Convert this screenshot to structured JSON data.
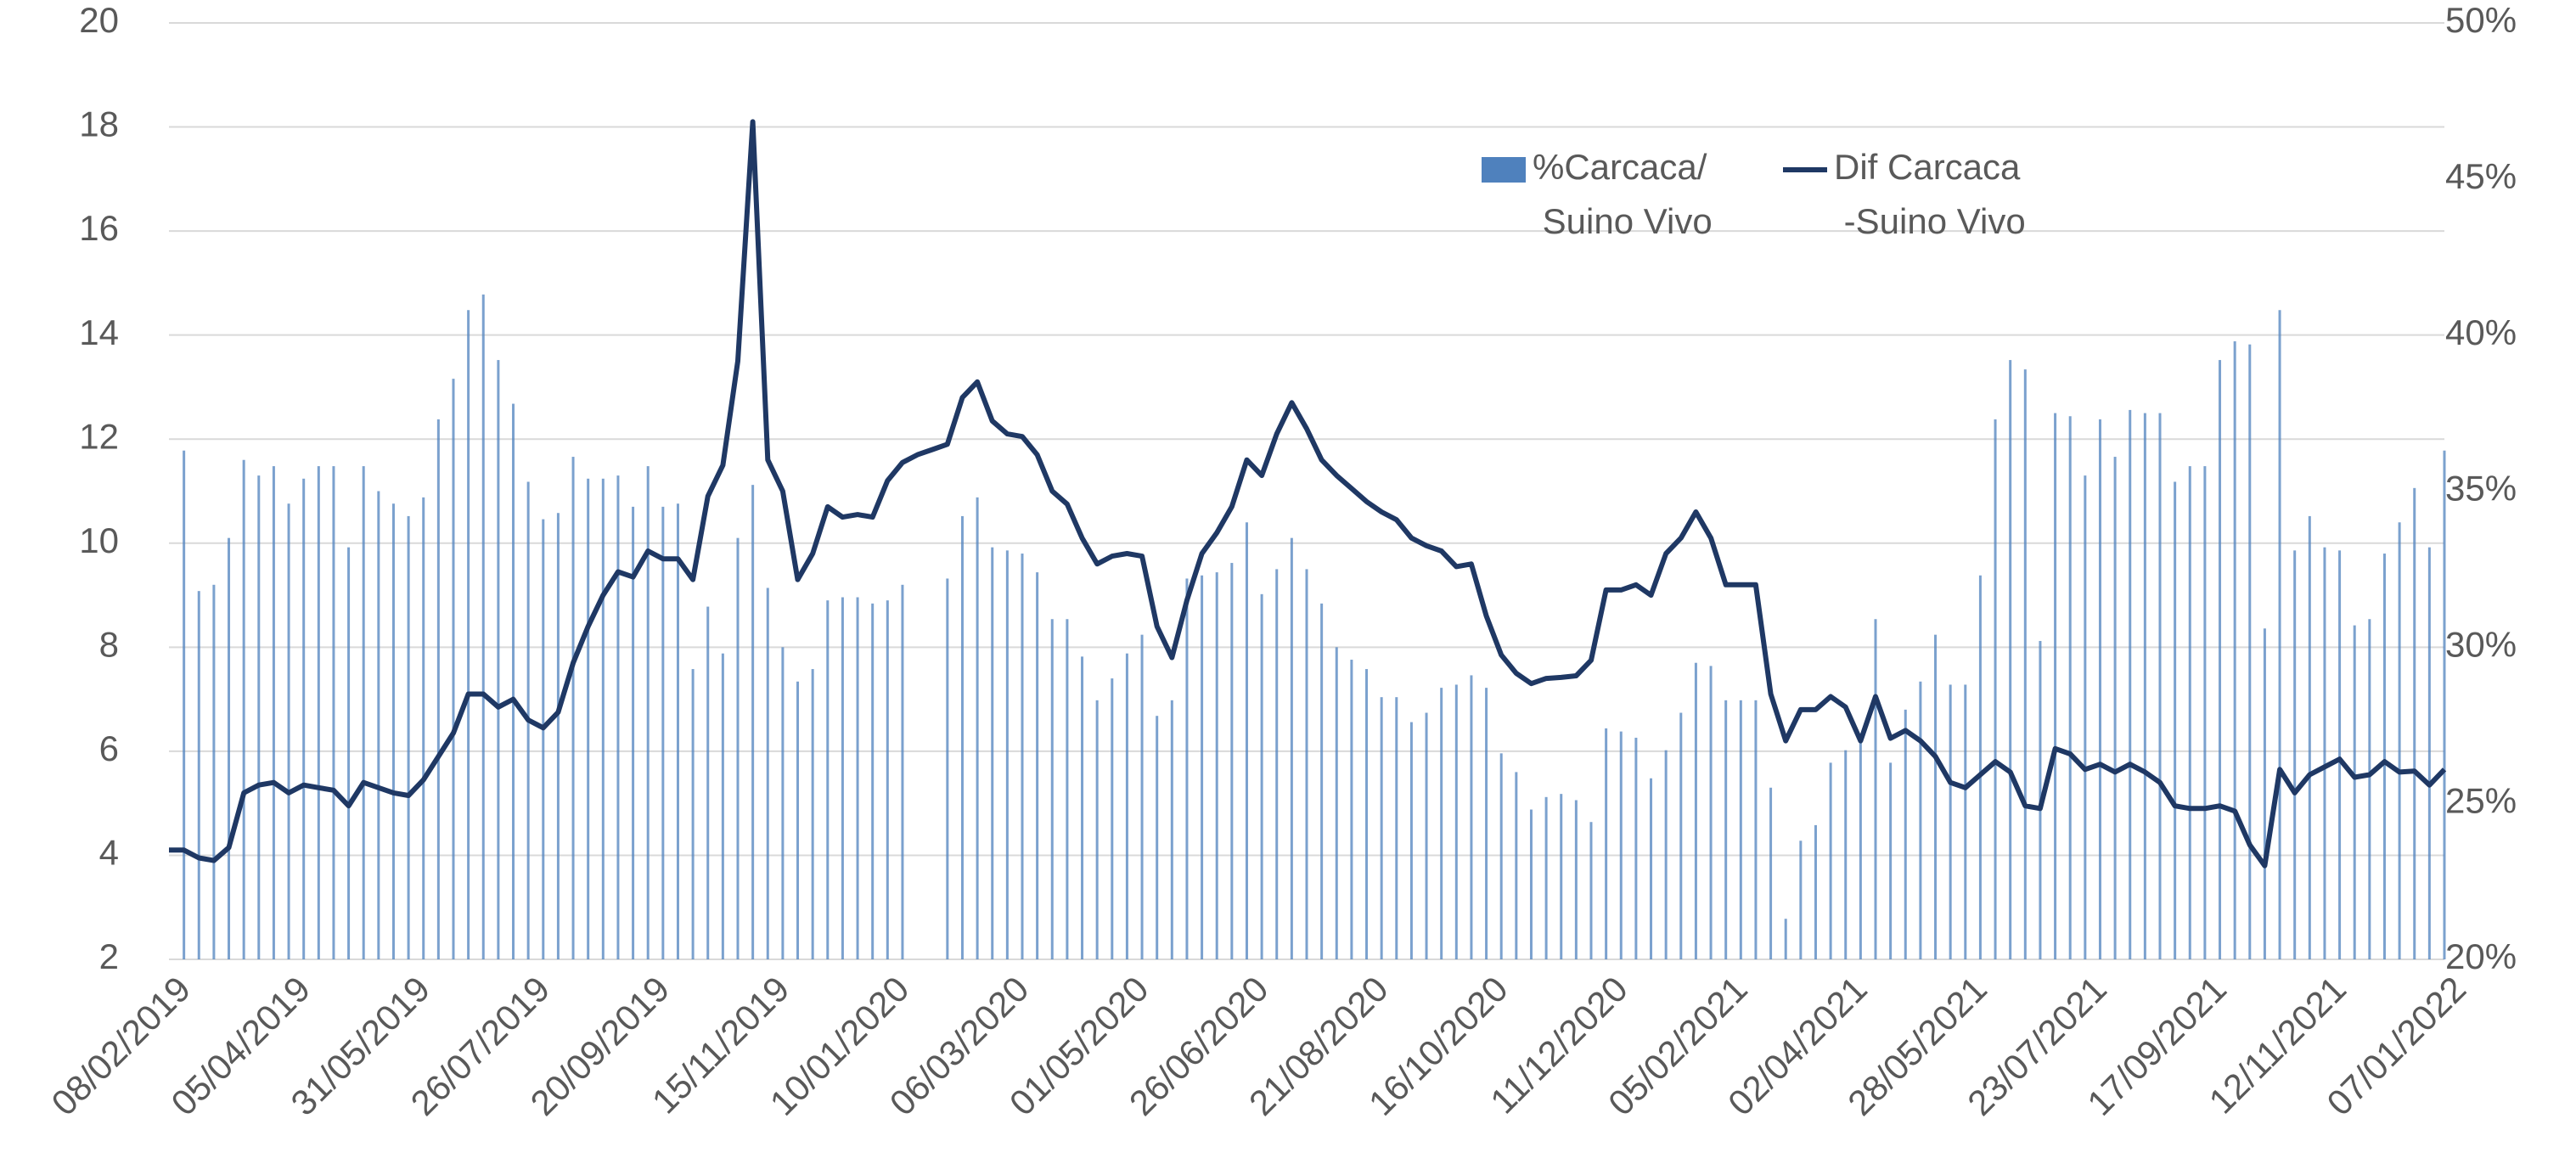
{
  "chart_data": {
    "type": "bar-line",
    "categories": [
      "08/02/2019",
      null,
      null,
      null,
      null,
      null,
      null,
      null,
      "05/04/2019",
      null,
      null,
      null,
      null,
      null,
      null,
      null,
      "31/05/2019",
      null,
      null,
      null,
      null,
      null,
      null,
      null,
      "26/07/2019",
      null,
      null,
      null,
      null,
      null,
      null,
      null,
      "20/09/2019",
      null,
      null,
      null,
      null,
      null,
      null,
      null,
      "15/11/2019",
      null,
      null,
      null,
      null,
      null,
      null,
      null,
      "10/01/2020",
      null,
      null,
      null,
      null,
      null,
      null,
      null,
      "06/03/2020",
      null,
      null,
      null,
      null,
      null,
      null,
      null,
      "01/05/2020",
      null,
      null,
      null,
      null,
      null,
      null,
      null,
      "26/06/2020",
      null,
      null,
      null,
      null,
      null,
      null,
      null,
      "21/08/2020",
      null,
      null,
      null,
      null,
      null,
      null,
      null,
      "16/10/2020",
      null,
      null,
      null,
      null,
      null,
      null,
      null,
      "11/12/2020",
      null,
      null,
      null,
      null,
      null,
      null,
      null,
      "05/02/2021",
      null,
      null,
      null,
      null,
      null,
      null,
      null,
      "02/04/2021",
      null,
      null,
      null,
      null,
      null,
      null,
      null,
      "28/05/2021",
      null,
      null,
      null,
      null,
      null,
      null,
      null,
      "23/07/2021",
      null,
      null,
      null,
      null,
      null,
      null,
      null,
      "17/09/2021",
      null,
      null,
      null,
      null,
      null,
      null,
      null,
      "12/11/2021",
      null,
      null,
      null,
      null,
      null,
      null,
      null,
      "07/01/2022"
    ],
    "series": [
      {
        "name": "%Carcaca/\nSuino Vivo",
        "type": "bar",
        "axis": "y2",
        "color": "#4f81bd",
        "values": [
          null,
          36.3,
          31.8,
          32.0,
          33.5,
          36.0,
          35.5,
          35.8,
          34.6,
          35.4,
          35.8,
          35.8,
          33.2,
          35.8,
          35.0,
          34.6,
          34.2,
          34.8,
          37.3,
          38.6,
          40.8,
          41.3,
          39.2,
          37.8,
          35.3,
          34.1,
          34.3,
          36.1,
          35.4,
          35.4,
          35.5,
          34.5,
          35.8,
          34.5,
          34.6,
          29.3,
          31.3,
          29.8,
          33.5,
          35.2,
          31.9,
          30.0,
          28.9,
          29.3,
          31.5,
          31.6,
          31.6,
          31.4,
          31.5,
          32.0,
          null,
          null,
          32.2,
          34.2,
          34.8,
          33.2,
          33.1,
          33.0,
          32.4,
          30.9,
          30.9,
          29.7,
          28.3,
          29.0,
          29.8,
          30.4,
          27.8,
          28.3,
          32.2,
          32.3,
          32.4,
          32.7,
          34.0,
          31.7,
          32.5,
          33.5,
          32.5,
          31.4,
          30.0,
          29.6,
          29.3,
          28.4,
          28.4,
          27.6,
          27.9,
          28.7,
          28.8,
          29.1,
          28.7,
          26.6,
          26.0,
          24.8,
          25.2,
          25.3,
          25.1,
          24.4,
          27.4,
          27.3,
          27.1,
          25.8,
          26.7,
          27.9,
          29.5,
          29.4,
          28.3,
          28.3,
          28.3,
          25.5,
          21.3,
          23.8,
          24.3,
          26.3,
          26.7,
          27.0,
          30.9,
          26.3,
          28.0,
          28.9,
          30.4,
          28.8,
          28.8,
          32.3,
          37.3,
          39.2,
          38.9,
          30.2,
          37.5,
          37.4,
          35.5,
          37.3,
          36.1,
          37.6,
          37.5,
          37.5,
          35.3,
          35.8,
          35.8,
          39.2,
          39.8,
          39.7,
          30.6,
          40.8,
          33.1,
          34.2,
          33.2,
          33.1,
          30.7,
          30.9,
          33.0,
          34.0,
          35.1,
          33.2,
          36.3
        ]
      },
      {
        "name": "Dif Carcaca\n-Suino Vivo",
        "type": "line",
        "axis": "y",
        "color": "#1f3864",
        "values": [
          4.1,
          4.1,
          3.95,
          3.9,
          4.15,
          5.2,
          5.35,
          5.4,
          5.2,
          5.35,
          5.3,
          5.25,
          4.95,
          5.4,
          5.3,
          5.2,
          5.15,
          5.45,
          5.9,
          6.35,
          7.1,
          7.1,
          6.85,
          7.0,
          6.6,
          6.45,
          6.75,
          7.7,
          8.4,
          9.0,
          9.45,
          9.35,
          9.85,
          9.7,
          9.7,
          9.3,
          10.9,
          11.5,
          13.5,
          18.1,
          11.6,
          11.0,
          9.3,
          9.8,
          10.7,
          10.5,
          10.55,
          10.5,
          11.2,
          11.55,
          11.7,
          11.8,
          11.9,
          12.8,
          13.1,
          12.35,
          12.1,
          12.05,
          11.7,
          11.0,
          10.75,
          10.1,
          9.6,
          9.75,
          9.8,
          9.75,
          8.4,
          7.8,
          8.9,
          9.8,
          10.2,
          10.7,
          11.6,
          11.3,
          12.1,
          12.7,
          12.2,
          11.6,
          11.3,
          11.05,
          10.8,
          10.6,
          10.45,
          10.1,
          9.95,
          9.85,
          9.55,
          9.6,
          8.6,
          7.85,
          7.5,
          7.3,
          7.4,
          7.42,
          7.45,
          7.75,
          9.1,
          9.1,
          9.2,
          9.0,
          9.8,
          10.1,
          10.6,
          10.1,
          9.2,
          9.2,
          9.2,
          7.1,
          6.2,
          6.8,
          6.8,
          7.05,
          6.85,
          6.2,
          7.05,
          6.25,
          6.4,
          6.2,
          5.9,
          5.4,
          5.3,
          5.55,
          5.8,
          5.6,
          4.95,
          4.9,
          6.05,
          5.95,
          5.65,
          5.75,
          5.6,
          5.75,
          5.6,
          5.4,
          4.95,
          4.9,
          4.9,
          4.95,
          4.85,
          4.2,
          3.8,
          5.65,
          5.2,
          5.55,
          5.7,
          5.85,
          5.5,
          5.55,
          5.8,
          5.6,
          5.62,
          5.35,
          5.65
        ]
      }
    ],
    "ylim": [
      2,
      20
    ],
    "yticks": [
      2,
      4,
      6,
      8,
      10,
      12,
      14,
      16,
      18,
      20
    ],
    "y2lim": [
      20,
      50
    ],
    "y2ticks": [
      {
        "value": 20,
        "label": "20%"
      },
      {
        "value": 25,
        "label": "25%"
      },
      {
        "value": 30,
        "label": "30%"
      },
      {
        "value": 35,
        "label": "35%"
      },
      {
        "value": 40,
        "label": "40%"
      },
      {
        "value": 45,
        "label": "45%"
      },
      {
        "value": 50,
        "label": "50%"
      }
    ],
    "grid": true,
    "legend": "top-right"
  }
}
